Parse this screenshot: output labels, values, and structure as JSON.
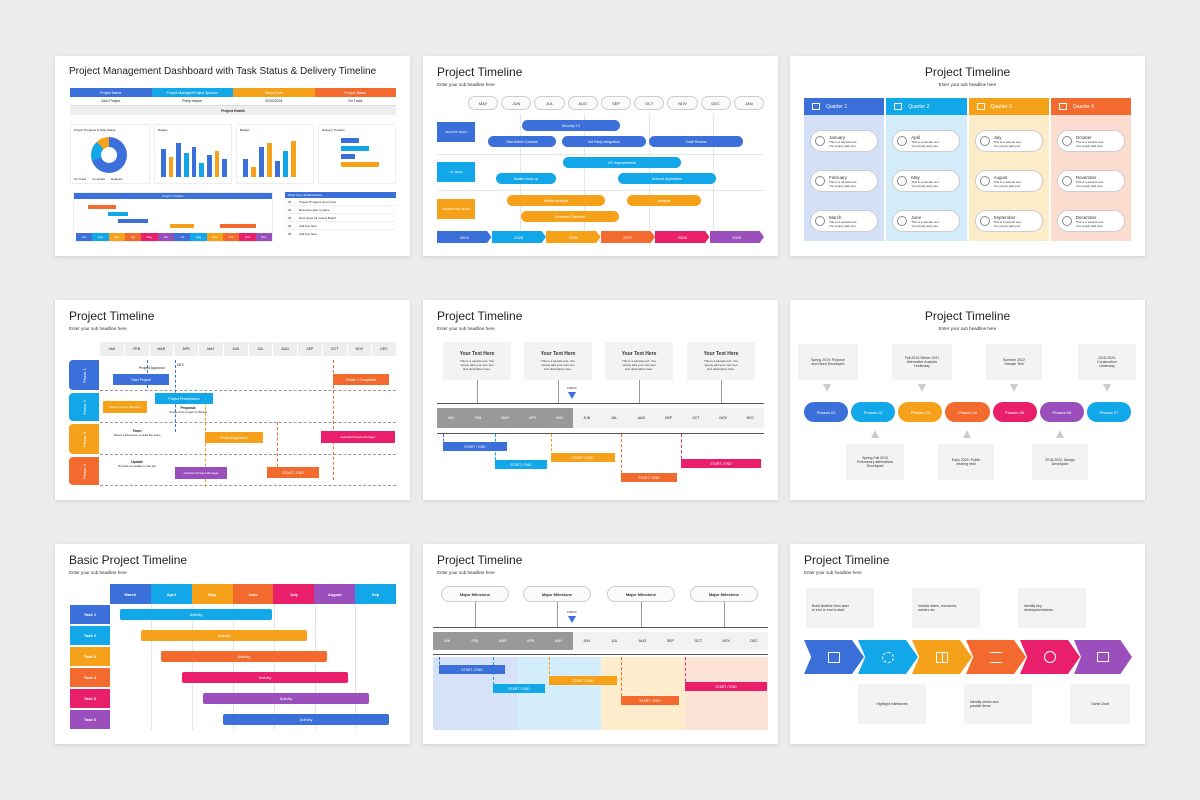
{
  "colors": {
    "blue": "#3b6fd9",
    "cyan": "#11a7e8",
    "orange": "#f5a21a",
    "red": "#f26a2e",
    "pink": "#ea1f6b",
    "purple": "#9b4fbd",
    "dark": "#333333"
  },
  "s1": {
    "title": "Project Management Dashboard with Task Status & Delivery Timeline",
    "headers": [
      "Project Name",
      "Project Manager/Project Sponsor",
      "Status Date",
      "Project Status"
    ],
    "values": [
      "SAU Project",
      "Philip Harper",
      "02/03/2024",
      "On Track"
    ],
    "health": "Project Health",
    "panel_titles": [
      "Project Progress & Task Status",
      "Budget",
      "Budget",
      "Delivery Timeline"
    ],
    "donut_legend": [
      "On Track",
      "Complete",
      "Delayed"
    ],
    "timeline_title": "Project Timeline",
    "months": [
      "Jan",
      "Feb",
      "Mar",
      "Apr",
      "May",
      "Jun",
      "Jul",
      "Aug",
      "Sep",
      "Oct",
      "Nov",
      "Dec"
    ],
    "upcoming_title": "Other Key Updates/Notes",
    "upcoming": [
      {
        "n": "01",
        "t": "Project Progress your hours"
      },
      {
        "n": "02",
        "t": "Resource plan in place"
      },
      {
        "n": "03",
        "t": "Next steps for review Board"
      },
      {
        "n": "04",
        "t": "Add text here"
      },
      {
        "n": "05",
        "t": "Add text here"
      }
    ]
  },
  "s2": {
    "title": "Project Timeline",
    "sub": "Enter your sub headline here",
    "months": [
      "MAY",
      "JUN",
      "JUL",
      "AUG",
      "SEP",
      "OCT",
      "NOV",
      "DEC",
      "JAN"
    ],
    "teams": [
      "DEVOPS TEAM",
      "UX TEAM",
      "MARKETING TEAM"
    ],
    "bars": [
      "Security 2.0",
      "New Admin Console",
      "3rd Party Integration",
      "Code Review",
      "UX Improvements",
      "Mobile mock up",
      "Android Application",
      "Market Analysis",
      "Analysis",
      "Customer Outreach"
    ],
    "years": [
      "2024",
      "2025",
      "2026",
      "2027",
      "2028",
      "2029"
    ]
  },
  "s3": {
    "title": "Project Timeline",
    "sub": "Enter your sub headline here",
    "quarters": [
      {
        "name": "Quarter 1",
        "months": [
          "January",
          "February",
          "March"
        ]
      },
      {
        "name": "Quarter 2",
        "months": [
          "April",
          "May",
          "June"
        ]
      },
      {
        "name": "Quarter 3",
        "months": [
          "July",
          "August",
          "September"
        ]
      },
      {
        "name": "Quarter 4",
        "months": [
          "October",
          "November",
          "December"
        ]
      }
    ],
    "line1": "This is a sample text.",
    "line2": "You simply add your"
  },
  "s4": {
    "title": "Project Timeline",
    "sub": "Enter your sub headline here",
    "months": [
      "JAN",
      "FEB",
      "MAR",
      "APR",
      "MAY",
      "JUN",
      "JUL",
      "AUG",
      "SEP",
      "OCT",
      "NOV",
      "DEC"
    ],
    "phases": [
      "Phase 1",
      "Phase 2",
      "Phase 3",
      "Phase 4"
    ],
    "dec": "DEC",
    "notes": {
      "approval": "Project Approval",
      "start": "Start Project",
      "p_complete": "Phase 1 Completed",
      "presentation": "Project Presentation",
      "assign": "Assign Project Manager",
      "proposal": "Proposal",
      "proposal_desc": "Present the project to Board",
      "team": "Team",
      "team_desc": "Select a Resource to lead the team",
      "approved": "Project Approved",
      "assistant": "Assistant Project Manager",
      "update": "Update",
      "update_desc": "Provide an update to the job",
      "assistant2": "Assistant Project Manager",
      "start_end": "START / END"
    }
  },
  "s5": {
    "title": "Project Timeline",
    "sub": "Enter your sub headline here",
    "card_title": "Your Text Here",
    "card_body": [
      "This is a sample text. You",
      "simply add your own text",
      "and description here."
    ],
    "today": "TODAY",
    "months": [
      "JAN",
      "FEB",
      "MAR",
      "APR",
      "MAY",
      "JUN",
      "JUL",
      "AUG",
      "SEP",
      "OCT",
      "NOV",
      "DEC"
    ],
    "bar_label": "START / END"
  },
  "s6": {
    "title": "Project Timeline",
    "sub": "Enter your sub headline here",
    "phases": [
      "Phases 01",
      "Phases 02",
      "Phases 03",
      "Phases 04",
      "Phases 05",
      "Phases 06",
      "Phases 07"
    ],
    "top": [
      [
        "Spring 2019: Purpose",
        "and Need Developed"
      ],
      [
        "Fall 2019-Winter 2021",
        "Alternative Analysis",
        "Underway"
      ],
      [
        "Summer 2022",
        "Sample Text"
      ],
      [
        "2015-2024:",
        "Construction",
        "Underway"
      ]
    ],
    "bottom": [
      [
        "Spring-Fall 2019",
        "Preliminary alternatives",
        "Developed"
      ],
      [
        "Early 2022: Public",
        "hearing held"
      ],
      [
        "2018-2022: Design",
        "Developed"
      ]
    ]
  },
  "s7": {
    "title": "Basic Project Timeline",
    "sub": "Enter your sub headline here",
    "months": [
      "March",
      "April",
      "May",
      "June",
      "July",
      "August",
      "Sep"
    ],
    "tasks": [
      "Task 1",
      "Task 2",
      "Task 3",
      "Task 4",
      "Task 5",
      "Task 6"
    ],
    "activity": "Activity"
  },
  "s8": {
    "title": "Project Timeline",
    "sub": "Enter your sub headline here",
    "milestone": "Major Milestone",
    "today": "TODAY",
    "months": [
      "JAN",
      "FEB",
      "MAR",
      "APR",
      "MAY",
      "JUN",
      "JUL",
      "AUG",
      "SEP",
      "OCT",
      "NOV",
      "DEC"
    ],
    "bar_label": "START / END"
  },
  "s9": {
    "title": "Project Timeline",
    "sub": "Enter your sub headline here",
    "top": [
      [
        "Build timeline from start",
        "to end or end to start"
      ],
      [
        "Include dates, resources,",
        "owners etc"
      ],
      [
        "Identify key",
        "developmentareas."
      ]
    ],
    "bottom": [
      [
        "Highlight milestones"
      ],
      [
        "Identify series and",
        "parallel items"
      ],
      [
        "Gantt Chart"
      ]
    ]
  }
}
